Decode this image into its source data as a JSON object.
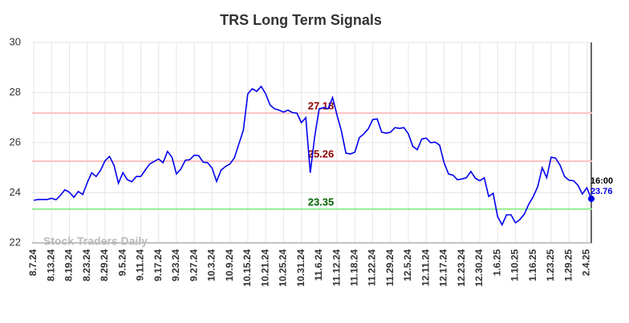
{
  "chart_data": {
    "type": "line",
    "title": "TRS Long Term Signals",
    "categories": [
      "8.7.24",
      null,
      null,
      null,
      "8.13.24",
      null,
      null,
      null,
      "8.19.24",
      null,
      null,
      null,
      "8.23.24",
      null,
      null,
      null,
      "8.29.24",
      null,
      null,
      null,
      "9.5.24",
      null,
      null,
      null,
      "9.11.24",
      null,
      null,
      null,
      "9.17.24",
      null,
      null,
      null,
      "9.23.24",
      null,
      null,
      null,
      "9.27.24",
      null,
      null,
      null,
      "10.3.24",
      null,
      null,
      null,
      "10.9.24",
      null,
      null,
      null,
      "10.15.24",
      null,
      null,
      null,
      "10.21.24",
      null,
      null,
      null,
      "10.25.24",
      null,
      null,
      null,
      "10.31.24",
      null,
      null,
      null,
      "11.6.24",
      null,
      null,
      null,
      "11.12.24",
      null,
      null,
      null,
      "11.18.24",
      null,
      null,
      null,
      "11.22.24",
      null,
      null,
      null,
      "11.29.24",
      null,
      null,
      null,
      "12.5.24",
      null,
      null,
      null,
      "12.11.24",
      null,
      null,
      null,
      "12.17.24",
      null,
      null,
      null,
      "12.23.24",
      null,
      null,
      null,
      "12.30.24",
      null,
      null,
      null,
      "1.6.25",
      null,
      null,
      null,
      "1.10.25",
      null,
      null,
      null,
      "1.16.25",
      null,
      null,
      null,
      "1.23.25",
      null,
      null,
      null,
      "1.29.25",
      null,
      null,
      null,
      "2.4.25",
      null
    ],
    "values": [
      23.7,
      23.73,
      23.73,
      23.73,
      23.78,
      23.72,
      23.9,
      24.12,
      24.02,
      23.82,
      24.05,
      23.93,
      24.4,
      24.8,
      24.65,
      24.9,
      25.28,
      25.45,
      25.1,
      24.38,
      24.8,
      24.52,
      24.44,
      24.65,
      24.65,
      24.9,
      25.15,
      25.25,
      25.35,
      25.2,
      25.65,
      25.42,
      24.75,
      24.95,
      25.3,
      25.32,
      25.5,
      25.48,
      25.22,
      25.2,
      24.98,
      24.45,
      24.9,
      25.05,
      25.15,
      25.4,
      25.95,
      26.5,
      27.95,
      28.15,
      28.05,
      28.25,
      27.95,
      27.5,
      27.35,
      27.3,
      27.22,
      27.3,
      27.2,
      27.18,
      26.8,
      27.0,
      24.8,
      26.25,
      27.35,
      27.4,
      27.35,
      27.8,
      27.1,
      26.45,
      25.58,
      25.55,
      25.62,
      26.2,
      26.35,
      26.55,
      26.92,
      26.95,
      26.42,
      26.38,
      26.42,
      26.6,
      26.57,
      26.6,
      26.35,
      25.85,
      25.72,
      26.15,
      26.18,
      26.0,
      26.02,
      25.9,
      25.2,
      24.75,
      24.7,
      24.52,
      24.55,
      24.6,
      24.85,
      24.58,
      24.48,
      24.6,
      23.85,
      23.98,
      23.05,
      22.72,
      23.12,
      23.12,
      22.8,
      22.93,
      23.15,
      23.55,
      23.85,
      24.25,
      25.0,
      24.6,
      25.42,
      25.38,
      25.1,
      24.65,
      24.5,
      24.48,
      24.3,
      23.95,
      24.2,
      23.76
    ],
    "color": "#0000ee",
    "ylim": [
      22,
      30
    ],
    "yticks": [
      22,
      24,
      26,
      28,
      30
    ],
    "grid": true,
    "hlines": [
      {
        "value": 27.18,
        "color": "#ffc0c0",
        "label_color": "#8b0000"
      },
      {
        "value": 25.26,
        "color": "#ffc0c0",
        "label_color": "#8b0000"
      },
      {
        "value": 23.35,
        "color": "#90ee90",
        "label_color": "#006400"
      }
    ],
    "last_time": "16:00",
    "watermark": "Stock Traders Daily"
  }
}
